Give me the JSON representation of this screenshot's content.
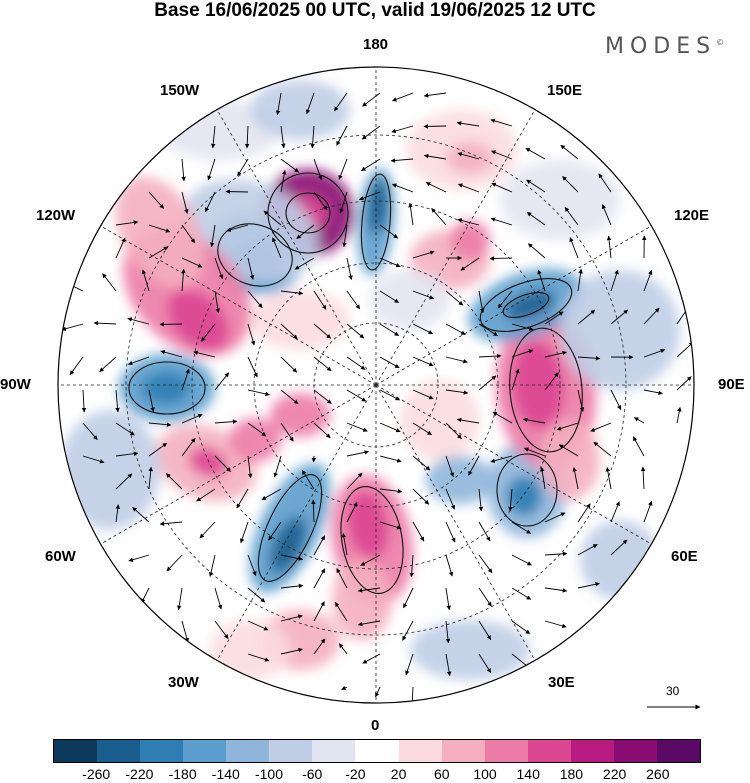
{
  "title": "Base 16/06/2025 00 UTC, valid 19/06/2025 12 UTC",
  "logo": {
    "text": "MODES",
    "mark": "©"
  },
  "longitude_labels": {
    "n180": "180",
    "w150": "150W",
    "e150": "150E",
    "w120": "120W",
    "e120": "120E",
    "w90": "90W",
    "e90": "90E",
    "w60": "60W",
    "e60": "60E",
    "w30": "30W",
    "e30": "30E",
    "s0": "0"
  },
  "reference_vector": {
    "label": "30"
  },
  "colorbar": {
    "ticks": [
      "-260",
      "-220",
      "-180",
      "-140",
      "-100",
      "-60",
      "-20",
      "20",
      "60",
      "100",
      "140",
      "180",
      "220",
      "260"
    ],
    "colors": [
      "#0d3a5c",
      "#1a5e8f",
      "#2e7db3",
      "#5b9dcc",
      "#8fb6da",
      "#bfcde6",
      "#e3e4f1",
      "#ffffff",
      "#fbdbe0",
      "#f4afc0",
      "#ec7ba6",
      "#dc4592",
      "#b81a80",
      "#8a0b72",
      "#5a0a65"
    ]
  },
  "map": {
    "projection": "north polar stereographic",
    "coastlines": true,
    "grid_dashed": true,
    "outside_hemisphere_fill": "#e4e4e4"
  }
}
